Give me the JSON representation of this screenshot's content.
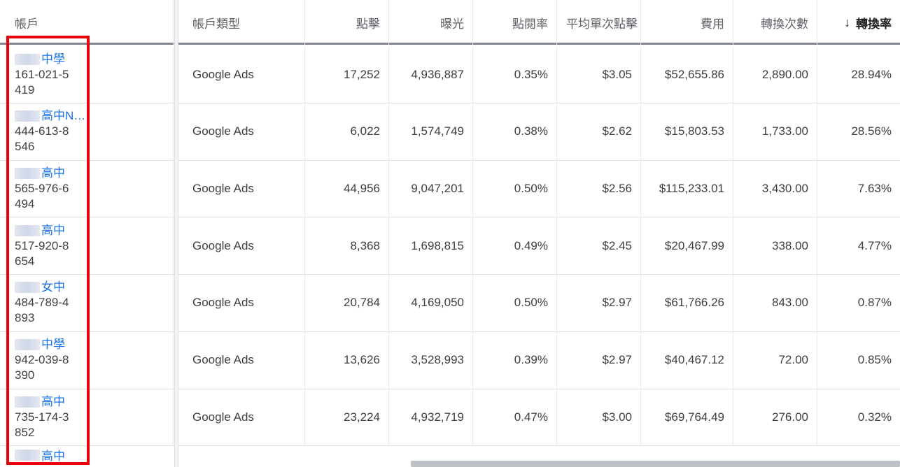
{
  "columns": {
    "account": "帳戶",
    "account_type": "帳戶類型",
    "clicks": "點擊",
    "impressions": "曝光",
    "ctr": "點閱率",
    "avg_cpc": "平均單次點擊",
    "cost": "費用",
    "conversions": "轉換次數",
    "conv_rate": "轉換率",
    "sort_arrow": "↓"
  },
  "rows": [
    {
      "name": "中學",
      "id": "161-021-5419",
      "type": "Google Ads",
      "clicks": "17,252",
      "impressions": "4,936,887",
      "ctr": "0.35%",
      "avg_cpc": "$3.05",
      "cost": "$52,655.86",
      "conversions": "2,890.00",
      "conv_rate": "28.94%"
    },
    {
      "name": "高中N…",
      "id": "444-613-8546",
      "type": "Google Ads",
      "clicks": "6,022",
      "impressions": "1,574,749",
      "ctr": "0.38%",
      "avg_cpc": "$2.62",
      "cost": "$15,803.53",
      "conversions": "1,733.00",
      "conv_rate": "28.56%"
    },
    {
      "name": "高中",
      "id": "565-976-6494",
      "type": "Google Ads",
      "clicks": "44,956",
      "impressions": "9,047,201",
      "ctr": "0.50%",
      "avg_cpc": "$2.56",
      "cost": "$115,233.01",
      "conversions": "3,430.00",
      "conv_rate": "7.63%"
    },
    {
      "name": "高中",
      "id": "517-920-8654",
      "type": "Google Ads",
      "clicks": "8,368",
      "impressions": "1,698,815",
      "ctr": "0.49%",
      "avg_cpc": "$2.45",
      "cost": "$20,467.99",
      "conversions": "338.00",
      "conv_rate": "4.77%"
    },
    {
      "name": "女中",
      "id": "484-789-4893",
      "type": "Google Ads",
      "clicks": "20,784",
      "impressions": "4,169,050",
      "ctr": "0.50%",
      "avg_cpc": "$2.97",
      "cost": "$61,766.26",
      "conversions": "843.00",
      "conv_rate": "0.87%"
    },
    {
      "name": "中學",
      "id": "942-039-8390",
      "type": "Google Ads",
      "clicks": "13,626",
      "impressions": "3,528,993",
      "ctr": "0.39%",
      "avg_cpc": "$2.97",
      "cost": "$40,467.12",
      "conversions": "72.00",
      "conv_rate": "0.85%"
    },
    {
      "name": "高中",
      "id": "735-174-3852",
      "type": "Google Ads",
      "clicks": "23,224",
      "impressions": "4,932,719",
      "ctr": "0.47%",
      "avg_cpc": "$3.00",
      "cost": "$69,764.49",
      "conversions": "276.00",
      "conv_rate": "0.32%"
    }
  ],
  "partial_row": {
    "name": "高中"
  },
  "colors": {
    "highlight": "#e8000b",
    "link": "#1a73e8"
  }
}
